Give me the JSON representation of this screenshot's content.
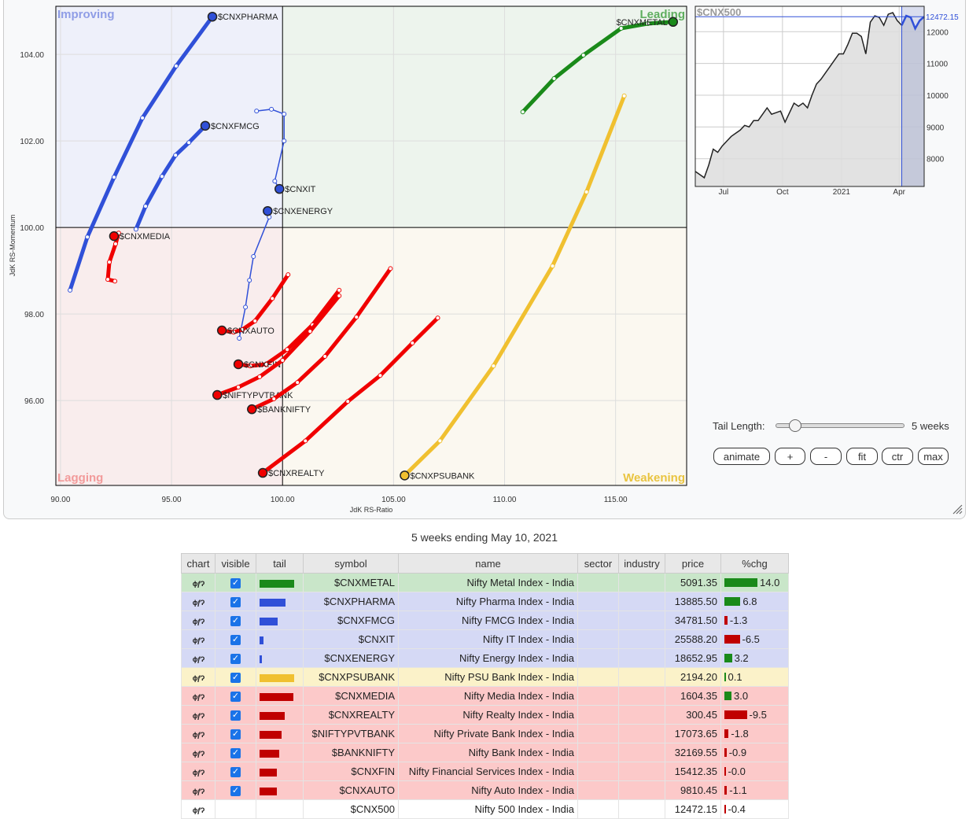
{
  "rrg": {
    "type": "scatter",
    "xlabel": "JdK RS-Ratio",
    "ylabel": "JdK RS-Momentum",
    "xlim": [
      89.79,
      118.2
    ],
    "ylim": [
      94.04,
      105.11
    ],
    "xticks": [
      "90.00",
      "95.00",
      "100.00",
      "105.00",
      "110.00",
      "115.00"
    ],
    "yticks": [
      "104.00",
      "102.00",
      "100.00",
      "98.00",
      "96.00"
    ],
    "center": [
      100,
      100
    ],
    "grid": true,
    "quadrants": {
      "improving": {
        "label": "Improving",
        "bg": "#eef0fa",
        "color": "#8f9de6"
      },
      "leading": {
        "label": "Leading",
        "bg": "#edf4ed",
        "color": "#5fae5f"
      },
      "lagging": {
        "label": "Lagging",
        "bg": "#f9eded",
        "color": "#f29a9a"
      },
      "weakening": {
        "label": "Weakening",
        "bg": "#fbf8f0",
        "color": "#e9c440"
      }
    },
    "series": [
      {
        "name": "$CNXPHARMA",
        "color": "#3050d8",
        "thin": false,
        "points": [
          [
            90.43,
            98.55
          ],
          [
            91.21,
            99.78
          ],
          [
            92.41,
            101.16
          ],
          [
            93.69,
            102.53
          ],
          [
            95.21,
            103.73
          ],
          [
            96.84,
            104.87
          ]
        ]
      },
      {
        "name": "$CNXFMCG",
        "color": "#3050d8",
        "thin": false,
        "points": [
          [
            93.4,
            99.96
          ],
          [
            93.83,
            100.49
          ],
          [
            94.57,
            101.18
          ],
          [
            95.18,
            101.67
          ],
          [
            95.78,
            101.96
          ],
          [
            96.52,
            102.35
          ]
        ]
      },
      {
        "name": "$CNXIT",
        "color": "#3050d8",
        "thin": true,
        "points": [
          [
            98.83,
            102.69
          ],
          [
            99.5,
            102.73
          ],
          [
            100.07,
            102.62
          ],
          [
            100.07,
            102.0
          ],
          [
            99.65,
            101.07
          ],
          [
            99.86,
            100.89
          ]
        ]
      },
      {
        "name": "$CNXENERGY",
        "color": "#3050d8",
        "thin": true,
        "points": [
          [
            98.05,
            97.44
          ],
          [
            98.33,
            98.16
          ],
          [
            98.51,
            98.78
          ],
          [
            98.69,
            99.33
          ],
          [
            99.4,
            100.24
          ],
          [
            99.33,
            100.38
          ]
        ]
      },
      {
        "name": "$CNXMEDIA",
        "color": "#f00000",
        "thin": false,
        "points": [
          [
            92.45,
            98.76
          ],
          [
            92.13,
            98.8
          ],
          [
            92.2,
            99.2
          ],
          [
            92.48,
            99.62
          ],
          [
            92.62,
            99.87
          ],
          [
            92.41,
            99.8
          ]
        ]
      },
      {
        "name": "$CNXMETAL",
        "color": "#1a8a1a",
        "thin": false,
        "labelLeft": true,
        "points": [
          [
            110.82,
            102.67
          ],
          [
            112.23,
            103.44
          ],
          [
            113.55,
            103.98
          ],
          [
            115.25,
            104.6
          ],
          [
            116.45,
            104.71
          ],
          [
            117.59,
            104.75
          ]
        ]
      },
      {
        "name": "$CNXPSUBANK",
        "color": "#f0c030",
        "thin": false,
        "points": [
          [
            115.39,
            103.04
          ],
          [
            113.69,
            100.82
          ],
          [
            112.16,
            99.11
          ],
          [
            109.5,
            96.8
          ],
          [
            107.09,
            95.07
          ],
          [
            105.5,
            94.27
          ]
        ]
      },
      {
        "name": "$CNXAUTO",
        "color": "#f00000",
        "thin": false,
        "points": [
          [
            100.25,
            98.91
          ],
          [
            99.54,
            98.36
          ],
          [
            98.76,
            97.84
          ],
          [
            98.19,
            97.64
          ],
          [
            97.8,
            97.58
          ],
          [
            97.27,
            97.62
          ]
        ]
      },
      {
        "name": "$CNXFIN",
        "color": "#f00000",
        "thin": false,
        "points": [
          [
            102.55,
            98.55
          ],
          [
            101.35,
            97.75
          ],
          [
            100.21,
            97.18
          ],
          [
            99.26,
            96.84
          ],
          [
            98.55,
            96.8
          ],
          [
            98.01,
            96.84
          ]
        ]
      },
      {
        "name": "$NIFTYPVTBANK",
        "color": "#f00000",
        "thin": false,
        "points": [
          [
            102.55,
            98.42
          ],
          [
            101.24,
            97.6
          ],
          [
            100.0,
            96.93
          ],
          [
            98.97,
            96.55
          ],
          [
            98.01,
            96.31
          ],
          [
            97.06,
            96.13
          ]
        ]
      },
      {
        "name": "$BANKNIFTY",
        "color": "#f00000",
        "thin": false,
        "points": [
          [
            104.86,
            99.05
          ],
          [
            103.33,
            97.93
          ],
          [
            101.91,
            97.02
          ],
          [
            100.67,
            96.42
          ],
          [
            99.61,
            96.04
          ],
          [
            98.62,
            95.8
          ]
        ]
      },
      {
        "name": "$CNXREALTY",
        "color": "#f00000",
        "thin": false,
        "points": [
          [
            106.99,
            97.91
          ],
          [
            105.85,
            97.33
          ],
          [
            104.4,
            96.58
          ],
          [
            102.94,
            95.98
          ],
          [
            101.03,
            95.07
          ],
          [
            99.11,
            94.33
          ]
        ]
      }
    ]
  },
  "chart_data": {
    "type": "line",
    "title": "$CNX500",
    "last_value_label": "12472.15",
    "ylim": [
      7125,
      12800
    ],
    "yticks": [
      "8000",
      "9000",
      "10000",
      "11000",
      "12000"
    ],
    "xticks": [
      "Jul",
      "Oct",
      "2021",
      "Apr"
    ],
    "grid": true,
    "highlight_weeks": 5,
    "values": [
      7600,
      7500,
      7400,
      7800,
      8300,
      8200,
      8400,
      8550,
      8700,
      8800,
      8900,
      9050,
      9000,
      9200,
      9200,
      9400,
      9600,
      9400,
      9450,
      9500,
      9150,
      9450,
      9750,
      9650,
      9750,
      9600,
      10000,
      10350,
      10500,
      10700,
      10900,
      11100,
      11300,
      11300,
      11600,
      11950,
      11950,
      11850,
      11300,
      12300,
      12500,
      12450,
      12200,
      12550,
      12600,
      12350,
      12200,
      12500,
      12450,
      12100,
      12350,
      12472.15
    ]
  },
  "controls": {
    "tail_length_label": "Tail Length:",
    "tail_length_value": "5 weeks",
    "tail_length_weeks": 5,
    "buttons": [
      "animate",
      "+",
      "-",
      "fit",
      "ctr",
      "max"
    ]
  },
  "caption": "5 weeks ending May 10, 2021",
  "table": {
    "headers": [
      "chart",
      "visible",
      "tail",
      "symbol",
      "name",
      "sector",
      "industry",
      "price",
      "%chg"
    ],
    "sort_column": "tail",
    "rows": [
      {
        "symbol": "$CNXMETAL",
        "name": "Nifty Metal Index - India",
        "price": "5091.35",
        "chg": "14.0",
        "chg_value": 14.0,
        "tail": 1.0,
        "tail_color": "#1a8a1a",
        "bg": "#c9e6c9",
        "visible": true
      },
      {
        "symbol": "$CNXPHARMA",
        "name": "Nifty Pharma Index - India",
        "price": "13885.50",
        "chg": "6.8",
        "chg_value": 6.8,
        "tail": 0.75,
        "tail_color": "#3050d8",
        "bg": "#d5d9f5",
        "visible": true
      },
      {
        "symbol": "$CNXFMCG",
        "name": "Nifty FMCG Index - India",
        "price": "34781.50",
        "chg": "-1.3",
        "chg_value": -1.3,
        "tail": 0.52,
        "tail_color": "#3050d8",
        "bg": "#d5d9f5",
        "visible": true
      },
      {
        "symbol": "$CNXIT",
        "name": "Nifty IT Index - India",
        "price": "25588.20",
        "chg": "-6.5",
        "chg_value": -6.5,
        "tail": 0.12,
        "tail_color": "#3050d8",
        "bg": "#d5d9f5",
        "visible": true
      },
      {
        "symbol": "$CNXENERGY",
        "name": "Nifty Energy Index - India",
        "price": "18652.95",
        "chg": "3.2",
        "chg_value": 3.2,
        "tail": 0.07,
        "tail_color": "#3050d8",
        "bg": "#d5d9f5",
        "visible": true
      },
      {
        "symbol": "$CNXPSUBANK",
        "name": "Nifty PSU Bank Index - India",
        "price": "2194.20",
        "chg": "0.1",
        "chg_value": 0.1,
        "tail": 1.0,
        "tail_color": "#f0c030",
        "bg": "#fbf2c9",
        "visible": true
      },
      {
        "symbol": "$CNXMEDIA",
        "name": "Nifty Media Index - India",
        "price": "1604.35",
        "chg": "3.0",
        "chg_value": 3.0,
        "tail": 0.98,
        "tail_color": "#c00000",
        "bg": "#fcc9c9",
        "visible": true
      },
      {
        "symbol": "$CNXREALTY",
        "name": "Nifty Realty Index - India",
        "price": "300.45",
        "chg": "-9.5",
        "chg_value": -9.5,
        "tail": 0.73,
        "tail_color": "#c00000",
        "bg": "#fcc9c9",
        "visible": true
      },
      {
        "symbol": "$NIFTYPVTBANK",
        "name": "Nifty Private Bank Index - India",
        "price": "17073.65",
        "chg": "-1.8",
        "chg_value": -1.8,
        "tail": 0.64,
        "tail_color": "#c00000",
        "bg": "#fcc9c9",
        "visible": true
      },
      {
        "symbol": "$BANKNIFTY",
        "name": "Nifty Bank Index - India",
        "price": "32169.55",
        "chg": "-0.9",
        "chg_value": -0.9,
        "tail": 0.57,
        "tail_color": "#c00000",
        "bg": "#fcc9c9",
        "visible": true
      },
      {
        "symbol": "$CNXFIN",
        "name": "Nifty Financial Services Index - India",
        "price": "15412.35",
        "chg": "-0.0",
        "chg_value": -0.0,
        "tail": 0.5,
        "tail_color": "#c00000",
        "bg": "#fcc9c9",
        "visible": true
      },
      {
        "symbol": "$CNXAUTO",
        "name": "Nifty Auto Index - India",
        "price": "9810.45",
        "chg": "-1.1",
        "chg_value": -1.1,
        "tail": 0.5,
        "tail_color": "#c00000",
        "bg": "#fcc9c9",
        "visible": true
      },
      {
        "symbol": "$CNX500",
        "name": "Nifty 500 Index - India",
        "price": "12472.15",
        "chg": "-0.4",
        "chg_value": -0.4,
        "tail": 0,
        "tail_color": "#ffffff",
        "bg": "#ffffff",
        "visible": null
      }
    ],
    "up_color": "#1a8a1a",
    "down_color": "#c00000"
  }
}
